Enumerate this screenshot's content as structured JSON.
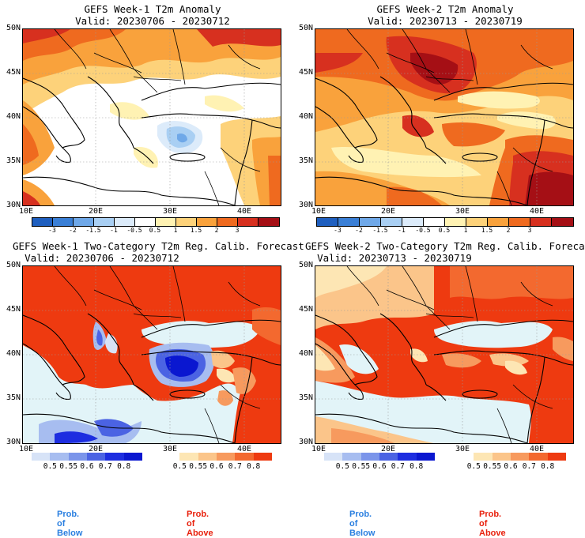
{
  "panels": {
    "tl": {
      "title_line1": "GEFS Week-1 T2m Anomaly",
      "title_line2": "Valid: 20230706 - 20230712"
    },
    "tr": {
      "title_line1": "GEFS Week-2 T2m Anomaly",
      "title_line2": "Valid: 20230713 - 20230719"
    },
    "bl": {
      "title_line1": "GEFS Week-1 Two-Category T2m Reg. Calib. Forecast",
      "title_line2": "Valid: 20230706 - 20230712"
    },
    "br": {
      "title_line1": "GEFS Week-2 Two-Category T2m Reg. Calib. Forecast",
      "title_line2": "Valid: 20230713 - 20230719"
    }
  },
  "axes": {
    "lat_labels": [
      "50N",
      "45N",
      "40N",
      "35N",
      "30N"
    ],
    "lon_labels": [
      "10E",
      "20E",
      "30E",
      "40E"
    ]
  },
  "anomaly_colorbar": {
    "ticks": [
      "-3",
      "-2",
      "-1.5",
      "-1",
      "-0.5",
      "0.5",
      "1",
      "1.5",
      "2",
      "3"
    ],
    "colors": [
      "#1f5fbf",
      "#3a7fd6",
      "#6fa8e8",
      "#a9cff3",
      "#dcebfa",
      "#ffffff",
      "#fff2b3",
      "#fdd27a",
      "#f9a23c",
      "#ef6a1f",
      "#d7301f",
      "#a50f15"
    ]
  },
  "prob_below": {
    "label": "Prob. of Below",
    "ticks": [
      "0.5",
      "0.55",
      "0.6",
      "0.7",
      "0.8"
    ],
    "colors": [
      "#d7e3f7",
      "#a7bdf0",
      "#7b95ea",
      "#4b63e3",
      "#1d2de0",
      "#0a17d0"
    ],
    "label_color": "#2a7fe0"
  },
  "prob_above": {
    "label": "Prob. of Above",
    "ticks": [
      "0.5",
      "0.55",
      "0.6",
      "0.7",
      "0.8"
    ],
    "colors": [
      "#ffffff",
      "#fde6b4",
      "#fbc58a",
      "#f79a5e",
      "#f3692f",
      "#ee3a10"
    ],
    "label_color": "#e8200c"
  }
}
